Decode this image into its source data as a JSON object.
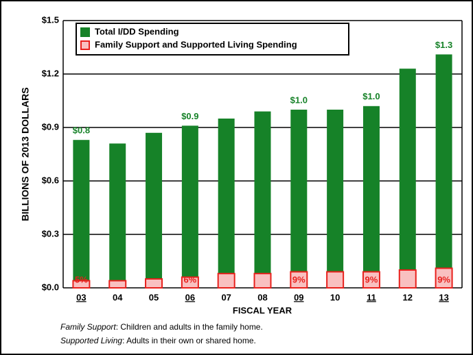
{
  "chart_data": {
    "type": "bar",
    "ylabel": "BILLIONS OF 2013 DOLLARS",
    "xlabel": "FISCAL YEAR",
    "categories": [
      "03",
      "04",
      "05",
      "06",
      "07",
      "08",
      "09",
      "10",
      "11",
      "12",
      "13"
    ],
    "underlined": [
      true,
      false,
      false,
      true,
      false,
      false,
      true,
      false,
      true,
      false,
      true
    ],
    "series": [
      {
        "name": "Total I/DD Spending",
        "color": "#168228",
        "values": [
          0.83,
          0.81,
          0.87,
          0.91,
          0.95,
          0.99,
          1.0,
          1.0,
          1.02,
          1.23,
          1.31
        ],
        "value_labels": [
          "$0.8",
          null,
          null,
          "$0.9",
          null,
          null,
          "$1.0",
          null,
          "$1.0",
          null,
          "$1.3"
        ]
      },
      {
        "name": "Family Support and Supported Living Spending",
        "color": "#f9c0c0",
        "edge_color": "#e8201c",
        "values": [
          0.04,
          0.04,
          0.05,
          0.06,
          0.08,
          0.08,
          0.09,
          0.09,
          0.09,
          0.1,
          0.11
        ],
        "percent_labels": [
          "5%",
          null,
          null,
          "6%",
          null,
          null,
          "9%",
          null,
          "9%",
          null,
          "9%"
        ]
      }
    ],
    "ylim": [
      0,
      1.5
    ],
    "yticks": [
      {
        "value": 0,
        "label": "$0.0"
      },
      {
        "value": 0.3,
        "label": "$0.3"
      },
      {
        "value": 0.6,
        "label": "$0.6"
      },
      {
        "value": 0.9,
        "label": "$0.9"
      },
      {
        "value": 1.2,
        "label": "$1.2"
      },
      {
        "value": 1.5,
        "label": "$1.5"
      }
    ],
    "grid": true,
    "footnotes": [
      {
        "term": "Family Support",
        "text": ": Children and adults in the family home."
      },
      {
        "term": "Supported Living",
        "text": ": Adults in their own or shared home."
      }
    ]
  }
}
